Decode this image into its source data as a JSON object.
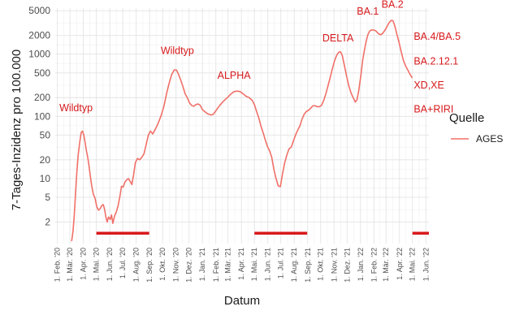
{
  "chart_data": {
    "type": "line",
    "ylabel": "7-Tages-Inzidenz pro 100.000",
    "xlabel": "Datum",
    "y_scale": "log",
    "grid": true,
    "y_ticks": [
      2,
      5,
      10,
      20,
      50,
      100,
      200,
      500,
      1000,
      2000,
      5000
    ],
    "y_tick_labels": [
      "2",
      "5",
      "10",
      "20",
      "50",
      "100",
      "200",
      "500",
      "1000",
      "2000",
      "5000"
    ],
    "x_ticks": [
      "2020-02-01",
      "2020-03-01",
      "2020-04-01",
      "2020-05-01",
      "2020-06-01",
      "2020-07-01",
      "2020-08-01",
      "2020-09-01",
      "2020-10-01",
      "2020-11-01",
      "2020-12-01",
      "2021-01-01",
      "2021-02-01",
      "2021-03-01",
      "2021-04-01",
      "2021-05-01",
      "2021-06-01",
      "2021-07-01",
      "2021-08-01",
      "2021-09-01",
      "2021-10-01",
      "2021-11-01",
      "2021-12-01",
      "2022-01-01",
      "2022-02-01",
      "2022-03-01",
      "2022-04-01",
      "2022-05-01",
      "2022-06-01"
    ],
    "x_tick_labels": [
      "1. Feb. '20",
      "1. Mär. '20",
      "1. Apr. '20",
      "1. Mai. '20",
      "1. Jun. '20",
      "1. Jul. '20",
      "1. Aug. '20",
      "1. Sep. '20",
      "1. Okt. '20",
      "1. Nov. '20",
      "1. Dez. '20",
      "1. Jan. '21",
      "1. Feb. '21",
      "1. Mär. '21",
      "1. Apr. '21",
      "1. Mai. '21",
      "1. Jun. '21",
      "1. Jul. '21",
      "1. Aug. '21",
      "1. Sep. '21",
      "1. Okt. '21",
      "1. Nov. '21",
      "1. Dez. '21",
      "1. Jan. '22",
      "1. Feb. '22",
      "1. Mär. '22",
      "1. Apr. '22",
      "1. Mai. '22",
      "1. Jun. '22"
    ],
    "xlim": [
      "2020-01-27",
      "2022-06-08"
    ],
    "ylim": [
      0.9,
      5500
    ],
    "series": [
      {
        "name": "AGES",
        "color": "#f07068",
        "points": [
          [
            "2020-03-05",
            1.0
          ],
          [
            "2020-03-08",
            1.4
          ],
          [
            "2020-03-11",
            2.6
          ],
          [
            "2020-03-14",
            6.0
          ],
          [
            "2020-03-17",
            13
          ],
          [
            "2020-03-20",
            24
          ],
          [
            "2020-03-24",
            40
          ],
          [
            "2020-03-27",
            55
          ],
          [
            "2020-03-30",
            58
          ],
          [
            "2020-04-02",
            50
          ],
          [
            "2020-04-05",
            38
          ],
          [
            "2020-04-08",
            28
          ],
          [
            "2020-04-11",
            22
          ],
          [
            "2020-04-14",
            16
          ],
          [
            "2020-04-17",
            11
          ],
          [
            "2020-04-20",
            7.8
          ],
          [
            "2020-04-24",
            5.6
          ],
          [
            "2020-04-28",
            4.8
          ],
          [
            "2020-05-02",
            3.5
          ],
          [
            "2020-05-06",
            3.1
          ],
          [
            "2020-05-10",
            3.3
          ],
          [
            "2020-05-14",
            3.7
          ],
          [
            "2020-05-17",
            3.8
          ],
          [
            "2020-05-20",
            3.2
          ],
          [
            "2020-05-23",
            2.4
          ],
          [
            "2020-05-26",
            2.0
          ],
          [
            "2020-05-29",
            2.4
          ],
          [
            "2020-06-02",
            2.2
          ],
          [
            "2020-06-05",
            2.6
          ],
          [
            "2020-06-08",
            1.9
          ],
          [
            "2020-06-12",
            2.5
          ],
          [
            "2020-06-16",
            2.9
          ],
          [
            "2020-06-20",
            3.6
          ],
          [
            "2020-06-24",
            5.0
          ],
          [
            "2020-06-28",
            7.5
          ],
          [
            "2020-07-02",
            7.3
          ],
          [
            "2020-07-06",
            8.8
          ],
          [
            "2020-07-10",
            9.5
          ],
          [
            "2020-07-14",
            10
          ],
          [
            "2020-07-18",
            9.0
          ],
          [
            "2020-07-22",
            8.0
          ],
          [
            "2020-07-26",
            11.5
          ],
          [
            "2020-07-30",
            18
          ],
          [
            "2020-08-04",
            21
          ],
          [
            "2020-08-09",
            20
          ],
          [
            "2020-08-14",
            22
          ],
          [
            "2020-08-19",
            25
          ],
          [
            "2020-08-24",
            35
          ],
          [
            "2020-08-29",
            50
          ],
          [
            "2020-09-03",
            58
          ],
          [
            "2020-09-08",
            52
          ],
          [
            "2020-09-13",
            60
          ],
          [
            "2020-09-18",
            70
          ],
          [
            "2020-09-23",
            85
          ],
          [
            "2020-09-28",
            105
          ],
          [
            "2020-10-04",
            145
          ],
          [
            "2020-10-10",
            230
          ],
          [
            "2020-10-16",
            340
          ],
          [
            "2020-10-22",
            470
          ],
          [
            "2020-10-28",
            560
          ],
          [
            "2020-11-02",
            555
          ],
          [
            "2020-11-07",
            470
          ],
          [
            "2020-11-12",
            380
          ],
          [
            "2020-11-17",
            300
          ],
          [
            "2020-11-22",
            230
          ],
          [
            "2020-11-27",
            200
          ],
          [
            "2020-12-02",
            165
          ],
          [
            "2020-12-07",
            150
          ],
          [
            "2020-12-12",
            145
          ],
          [
            "2020-12-17",
            155
          ],
          [
            "2020-12-22",
            158
          ],
          [
            "2020-12-27",
            150
          ],
          [
            "2021-01-01",
            128
          ],
          [
            "2021-01-06",
            120
          ],
          [
            "2021-01-11",
            112
          ],
          [
            "2021-01-16",
            108
          ],
          [
            "2021-01-21",
            105
          ],
          [
            "2021-01-26",
            108
          ],
          [
            "2021-01-31",
            120
          ],
          [
            "2021-02-05",
            135
          ],
          [
            "2021-02-10",
            150
          ],
          [
            "2021-02-16",
            168
          ],
          [
            "2021-02-22",
            185
          ],
          [
            "2021-03-01",
            205
          ],
          [
            "2021-03-08",
            230
          ],
          [
            "2021-03-15",
            250
          ],
          [
            "2021-03-22",
            255
          ],
          [
            "2021-03-29",
            250
          ],
          [
            "2021-04-05",
            230
          ],
          [
            "2021-04-12",
            210
          ],
          [
            "2021-04-19",
            200
          ],
          [
            "2021-04-26",
            180
          ],
          [
            "2021-05-01",
            155
          ],
          [
            "2021-05-06",
            120
          ],
          [
            "2021-05-11",
            95
          ],
          [
            "2021-05-16",
            70
          ],
          [
            "2021-05-21",
            55
          ],
          [
            "2021-05-26",
            42
          ],
          [
            "2021-05-31",
            33
          ],
          [
            "2021-06-05",
            28
          ],
          [
            "2021-06-10",
            22
          ],
          [
            "2021-06-15",
            14
          ],
          [
            "2021-06-20",
            10
          ],
          [
            "2021-06-25",
            7.6
          ],
          [
            "2021-06-30",
            7.4
          ],
          [
            "2021-07-05",
            12
          ],
          [
            "2021-07-10",
            18
          ],
          [
            "2021-07-15",
            24
          ],
          [
            "2021-07-20",
            30
          ],
          [
            "2021-07-25",
            32
          ],
          [
            "2021-07-30",
            40
          ],
          [
            "2021-08-04",
            50
          ],
          [
            "2021-08-09",
            60
          ],
          [
            "2021-08-14",
            70
          ],
          [
            "2021-08-19",
            90
          ],
          [
            "2021-08-24",
            108
          ],
          [
            "2021-08-29",
            120
          ],
          [
            "2021-09-03",
            125
          ],
          [
            "2021-09-08",
            135
          ],
          [
            "2021-09-13",
            148
          ],
          [
            "2021-09-18",
            148
          ],
          [
            "2021-09-23",
            143
          ],
          [
            "2021-09-28",
            143
          ],
          [
            "2021-10-03",
            150
          ],
          [
            "2021-10-08",
            180
          ],
          [
            "2021-10-13",
            230
          ],
          [
            "2021-10-18",
            310
          ],
          [
            "2021-10-23",
            420
          ],
          [
            "2021-10-28",
            580
          ],
          [
            "2021-11-02",
            780
          ],
          [
            "2021-11-07",
            960
          ],
          [
            "2021-11-12",
            1080
          ],
          [
            "2021-11-16",
            1090
          ],
          [
            "2021-11-20",
            950
          ],
          [
            "2021-11-25",
            650
          ],
          [
            "2021-11-30",
            440
          ],
          [
            "2021-12-05",
            310
          ],
          [
            "2021-12-10",
            240
          ],
          [
            "2021-12-15",
            200
          ],
          [
            "2021-12-20",
            170
          ],
          [
            "2021-12-24",
            185
          ],
          [
            "2021-12-28",
            260
          ],
          [
            "2022-01-02",
            460
          ],
          [
            "2022-01-06",
            800
          ],
          [
            "2022-01-10",
            1150
          ],
          [
            "2022-01-14",
            1600
          ],
          [
            "2022-01-18",
            2050
          ],
          [
            "2022-01-22",
            2350
          ],
          [
            "2022-01-26",
            2450
          ],
          [
            "2022-02-01",
            2450
          ],
          [
            "2022-02-06",
            2350
          ],
          [
            "2022-02-11",
            2150
          ],
          [
            "2022-02-16",
            2050
          ],
          [
            "2022-02-21",
            2150
          ],
          [
            "2022-02-26",
            2400
          ],
          [
            "2022-03-03",
            2750
          ],
          [
            "2022-03-08",
            3200
          ],
          [
            "2022-03-13",
            3500
          ],
          [
            "2022-03-17",
            3450
          ],
          [
            "2022-03-21",
            2900
          ],
          [
            "2022-03-26",
            2100
          ],
          [
            "2022-03-31",
            1550
          ],
          [
            "2022-04-05",
            1100
          ],
          [
            "2022-04-10",
            800
          ],
          [
            "2022-04-15",
            650
          ],
          [
            "2022-04-20",
            560
          ],
          [
            "2022-04-25",
            480
          ],
          [
            "2022-04-30",
            420
          ]
        ]
      }
    ],
    "bars": [
      {
        "start": "2020-05-01",
        "end": "2020-08-31",
        "color": "#d7191c"
      },
      {
        "start": "2021-05-01",
        "end": "2021-08-31",
        "color": "#d7191c"
      },
      {
        "start": "2022-05-01",
        "end": "2022-06-08",
        "color": "#d7191c"
      }
    ],
    "annotations": [
      {
        "text": "Wildtyp",
        "date": "2020-03-15",
        "value": 120,
        "color": "#d7191c"
      },
      {
        "text": "Wildtyp",
        "date": "2020-11-04",
        "value": 1000,
        "color": "#d7191c"
      },
      {
        "text": "ALPHA",
        "date": "2021-03-15",
        "value": 400,
        "color": "#d7191c"
      },
      {
        "text": "DELTA",
        "date": "2021-11-10",
        "value": 1600,
        "color": "#d7191c"
      },
      {
        "text": "BA.1",
        "date": "2022-01-18",
        "value": 4300,
        "color": "#d7191c"
      },
      {
        "text": "BA.2",
        "date": "2022-03-16",
        "value": 5600,
        "color": "#d7191c"
      },
      {
        "text": "BA.4/BA.5",
        "date": "2022-05-04",
        "value": 1700,
        "color": "#d7191c",
        "align": "start"
      },
      {
        "text": "BA.2.12.1",
        "date": "2022-05-04",
        "value": 680,
        "color": "#d7191c",
        "align": "start"
      },
      {
        "text": "XD,XE",
        "date": "2022-05-04",
        "value": 280,
        "color": "#d7191c",
        "align": "start"
      },
      {
        "text": "BA+RIRI",
        "date": "2022-05-04",
        "value": 115,
        "color": "#d7191c",
        "align": "start"
      }
    ],
    "legend": {
      "title": "Quelle",
      "placement": "right",
      "items": [
        {
          "label": "AGES",
          "color": "#f07068"
        }
      ]
    }
  }
}
